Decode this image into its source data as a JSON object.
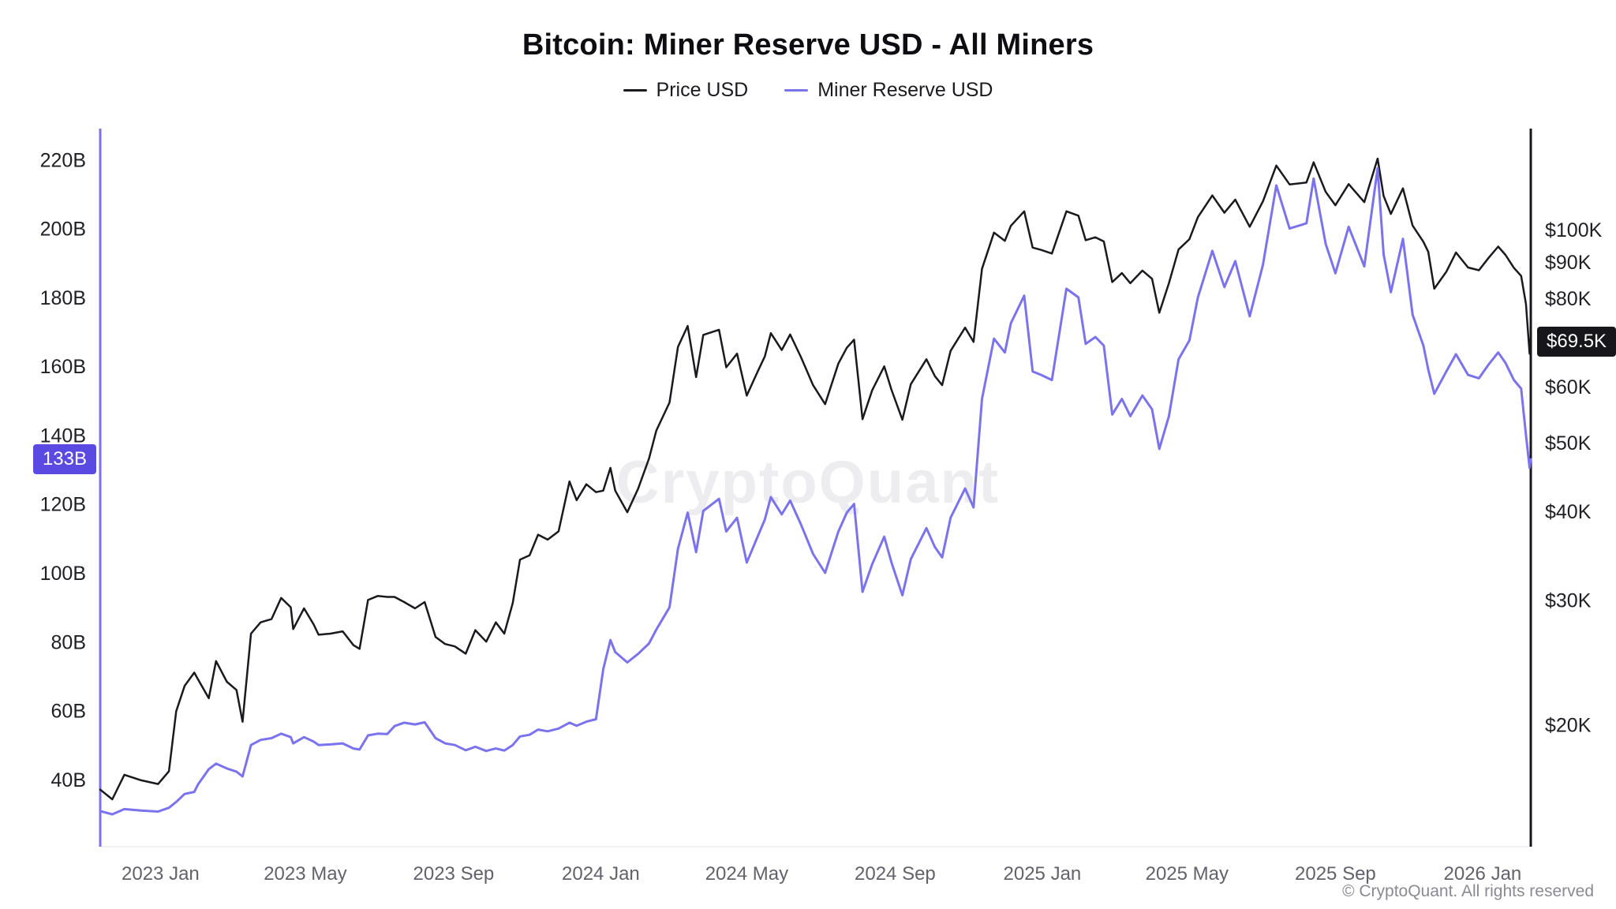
{
  "watermark": {
    "text": "CryptoQuant"
  },
  "footer": {
    "copyright": "© CryptoQuant. All rights reserved"
  },
  "chart_data": {
    "type": "line",
    "title": "Bitcoin: Miner Reserve USD - All Miners",
    "grid": "none",
    "legend_position": "top",
    "x_axis": {
      "range": [
        "2022-11-12",
        "2026-02-10"
      ],
      "ticks": [
        {
          "date": "2023-01-01",
          "label": "2023 Jan"
        },
        {
          "date": "2023-05-01",
          "label": "2023 May"
        },
        {
          "date": "2023-09-01",
          "label": "2023 Sep"
        },
        {
          "date": "2024-01-01",
          "label": "2024 Jan"
        },
        {
          "date": "2024-05-01",
          "label": "2024 May"
        },
        {
          "date": "2024-09-01",
          "label": "2024 Sep"
        },
        {
          "date": "2025-01-01",
          "label": "2025 Jan"
        },
        {
          "date": "2025-05-01",
          "label": "2025 May"
        },
        {
          "date": "2025-09-01",
          "label": "2025 Sep"
        },
        {
          "date": "2026-01-01",
          "label": "2026 Jan"
        }
      ]
    },
    "left_axis": {
      "label": "Miner Reserve USD (billions USD)",
      "scale": "linear",
      "range": [
        20.5,
        229
      ],
      "spine_color": "#7B72EE",
      "ticks": [
        {
          "value": 40,
          "label": "40B"
        },
        {
          "value": 60,
          "label": "60B"
        },
        {
          "value": 80,
          "label": "80B"
        },
        {
          "value": 100,
          "label": "100B"
        },
        {
          "value": 120,
          "label": "120B"
        },
        {
          "value": 140,
          "label": "140B"
        },
        {
          "value": 160,
          "label": "160B"
        },
        {
          "value": 180,
          "label": "180B"
        },
        {
          "value": 200,
          "label": "200B"
        },
        {
          "value": 220,
          "label": "220B"
        }
      ]
    },
    "right_axis": {
      "label": "Price USD (thousands USD)",
      "scale": "log",
      "range": [
        13.46,
        138.8
      ],
      "spine_color": "#17171B",
      "ticks": [
        {
          "value": 20,
          "label": "$20K"
        },
        {
          "value": 30,
          "label": "$30K"
        },
        {
          "value": 40,
          "label": "$40K"
        },
        {
          "value": 50,
          "label": "$50K"
        },
        {
          "value": 60,
          "label": "$60K"
        },
        {
          "value": 80,
          "label": "$80K"
        },
        {
          "value": 90,
          "label": "$90K"
        },
        {
          "value": 100,
          "label": "$100K"
        }
      ]
    },
    "last_value_badges": {
      "left": {
        "label": "133B",
        "value": 133,
        "bg": "#5B4AE1"
      },
      "right": {
        "label": "$69.5K",
        "value": 69.5,
        "bg": "#17171B"
      }
    },
    "series": [
      {
        "name": "Price USD",
        "axis": "right",
        "color": "#1A1A1E",
        "width": 2.5,
        "unit": "USD thousands",
        "point_index": 1
      },
      {
        "name": "Miner Reserve USD",
        "axis": "left",
        "color": "#7B72EE",
        "width": 3,
        "unit": "USD billions",
        "point_index": 2
      }
    ],
    "columns": [
      "date",
      "price_usd_k",
      "miner_reserve_usd_b"
    ],
    "points": [
      [
        "2022-11-12",
        16.2,
        30.8
      ],
      [
        "2022-11-22",
        15.7,
        29.9
      ],
      [
        "2022-12-02",
        17.0,
        31.4
      ],
      [
        "2022-12-16",
        16.7,
        31.0
      ],
      [
        "2022-12-30",
        16.5,
        30.7
      ],
      [
        "2023-01-08",
        17.2,
        31.8
      ],
      [
        "2023-01-14",
        20.9,
        33.5
      ],
      [
        "2023-01-21",
        22.7,
        35.8
      ],
      [
        "2023-01-29",
        23.7,
        36.4
      ],
      [
        "2023-02-01",
        23.2,
        38.5
      ],
      [
        "2023-02-10",
        21.8,
        43.0
      ],
      [
        "2023-02-16",
        24.6,
        44.6
      ],
      [
        "2023-02-25",
        23.0,
        43.2
      ],
      [
        "2023-03-05",
        22.4,
        42.3
      ],
      [
        "2023-03-10",
        20.2,
        40.9
      ],
      [
        "2023-03-17",
        26.9,
        50.0
      ],
      [
        "2023-03-25",
        27.9,
        51.5
      ],
      [
        "2023-04-03",
        28.2,
        52.0
      ],
      [
        "2023-04-11",
        30.2,
        53.3
      ],
      [
        "2023-04-19",
        29.3,
        52.3
      ],
      [
        "2023-04-21",
        27.3,
        50.5
      ],
      [
        "2023-04-30",
        29.2,
        52.3
      ],
      [
        "2023-05-08",
        27.7,
        51.0
      ],
      [
        "2023-05-12",
        26.8,
        50.0
      ],
      [
        "2023-05-22",
        26.9,
        50.2
      ],
      [
        "2023-06-01",
        27.1,
        50.5
      ],
      [
        "2023-06-10",
        25.9,
        49.0
      ],
      [
        "2023-06-15",
        25.6,
        48.7
      ],
      [
        "2023-06-22",
        30.0,
        52.8
      ],
      [
        "2023-06-30",
        30.4,
        53.3
      ],
      [
        "2023-07-08",
        30.3,
        53.2
      ],
      [
        "2023-07-14",
        30.3,
        55.5
      ],
      [
        "2023-07-22",
        29.8,
        56.5
      ],
      [
        "2023-07-31",
        29.2,
        56.0
      ],
      [
        "2023-08-08",
        29.8,
        56.6
      ],
      [
        "2023-08-17",
        26.6,
        52.0
      ],
      [
        "2023-08-25",
        26.0,
        50.5
      ],
      [
        "2023-09-02",
        25.8,
        50.0
      ],
      [
        "2023-09-11",
        25.2,
        48.5
      ],
      [
        "2023-09-19",
        27.2,
        49.5
      ],
      [
        "2023-09-28",
        26.2,
        48.3
      ],
      [
        "2023-10-06",
        27.9,
        49.0
      ],
      [
        "2023-10-13",
        26.9,
        48.4
      ],
      [
        "2023-10-20",
        29.7,
        50.0
      ],
      [
        "2023-10-26",
        34.2,
        52.5
      ],
      [
        "2023-11-03",
        34.7,
        53.0
      ],
      [
        "2023-11-10",
        37.1,
        54.5
      ],
      [
        "2023-11-18",
        36.5,
        54.0
      ],
      [
        "2023-11-27",
        37.5,
        54.8
      ],
      [
        "2023-12-06",
        44.1,
        56.5
      ],
      [
        "2023-12-12",
        41.5,
        55.6
      ],
      [
        "2023-12-20",
        43.7,
        56.8
      ],
      [
        "2023-12-28",
        42.6,
        57.5
      ],
      [
        "2024-01-03",
        42.8,
        72.0
      ],
      [
        "2024-01-09",
        46.1,
        80.5
      ],
      [
        "2024-01-13",
        42.8,
        77.0
      ],
      [
        "2024-01-23",
        39.9,
        74.0
      ],
      [
        "2024-02-01",
        43.1,
        76.5
      ],
      [
        "2024-02-10",
        47.5,
        79.5
      ],
      [
        "2024-02-16",
        52.0,
        83.5
      ],
      [
        "2024-02-27",
        57.0,
        90.0
      ],
      [
        "2024-03-05",
        68.3,
        107.0
      ],
      [
        "2024-03-13",
        73.1,
        117.5
      ],
      [
        "2024-03-20",
        61.9,
        106.0
      ],
      [
        "2024-03-26",
        71.0,
        118.0
      ],
      [
        "2024-04-08",
        72.2,
        121.5
      ],
      [
        "2024-04-14",
        63.9,
        112.0
      ],
      [
        "2024-04-23",
        66.8,
        116.0
      ],
      [
        "2024-05-01",
        58.3,
        103.0
      ],
      [
        "2024-05-10",
        63.0,
        110.5
      ],
      [
        "2024-05-16",
        66.2,
        115.5
      ],
      [
        "2024-05-21",
        71.4,
        122.0
      ],
      [
        "2024-05-30",
        67.6,
        117.0
      ],
      [
        "2024-06-06",
        71.1,
        121.0
      ],
      [
        "2024-06-15",
        66.0,
        114.0
      ],
      [
        "2024-06-25",
        60.3,
        105.5
      ],
      [
        "2024-07-05",
        56.7,
        100.0
      ],
      [
        "2024-07-16",
        64.7,
        112.0
      ],
      [
        "2024-07-23",
        68.1,
        117.5
      ],
      [
        "2024-07-29",
        69.9,
        120.0
      ],
      [
        "2024-08-05",
        54.0,
        94.5
      ],
      [
        "2024-08-13",
        59.3,
        102.5
      ],
      [
        "2024-08-23",
        64.1,
        110.5
      ],
      [
        "2024-08-29",
        59.4,
        103.0
      ],
      [
        "2024-09-07",
        53.9,
        93.5
      ],
      [
        "2024-09-14",
        60.5,
        104.0
      ],
      [
        "2024-09-27",
        65.6,
        113.0
      ],
      [
        "2024-10-04",
        62.1,
        107.5
      ],
      [
        "2024-10-10",
        60.3,
        104.5
      ],
      [
        "2024-10-17",
        67.4,
        116.0
      ],
      [
        "2024-10-29",
        72.7,
        124.5
      ],
      [
        "2024-11-05",
        69.4,
        119.0
      ],
      [
        "2024-11-12",
        88.0,
        150.5
      ],
      [
        "2024-11-22",
        99.0,
        168.0
      ],
      [
        "2024-12-01",
        96.4,
        164.0
      ],
      [
        "2024-12-06",
        101.2,
        172.5
      ],
      [
        "2024-12-17",
        106.1,
        180.5
      ],
      [
        "2024-12-24",
        94.3,
        158.5
      ],
      [
        "2024-12-31",
        93.6,
        157.5
      ],
      [
        "2025-01-09",
        92.5,
        156.0
      ],
      [
        "2025-01-21",
        106.1,
        182.5
      ],
      [
        "2025-01-31",
        104.6,
        180.0
      ],
      [
        "2025-02-06",
        96.6,
        166.5
      ],
      [
        "2025-02-14",
        97.5,
        168.5
      ],
      [
        "2025-02-21",
        96.2,
        166.0
      ],
      [
        "2025-02-28",
        84.3,
        146.0
      ],
      [
        "2025-03-08",
        86.8,
        150.5
      ],
      [
        "2025-03-15",
        84.0,
        145.5
      ],
      [
        "2025-03-25",
        87.5,
        151.5
      ],
      [
        "2025-04-02",
        85.2,
        147.5
      ],
      [
        "2025-04-08",
        76.3,
        136.0
      ],
      [
        "2025-04-16",
        84.0,
        145.5
      ],
      [
        "2025-04-24",
        93.7,
        162.0
      ],
      [
        "2025-05-03",
        96.9,
        167.5
      ],
      [
        "2025-05-10",
        104.1,
        180.0
      ],
      [
        "2025-05-22",
        111.7,
        193.5
      ],
      [
        "2025-06-01",
        105.6,
        183.0
      ],
      [
        "2025-06-10",
        110.2,
        190.5
      ],
      [
        "2025-06-22",
        100.9,
        174.5
      ],
      [
        "2025-07-03",
        109.6,
        189.5
      ],
      [
        "2025-07-14",
        123.1,
        212.5
      ],
      [
        "2025-07-25",
        115.8,
        200.0
      ],
      [
        "2025-08-08",
        116.5,
        201.5
      ],
      [
        "2025-08-14",
        124.4,
        214.5
      ],
      [
        "2025-08-24",
        113.0,
        195.5
      ],
      [
        "2025-09-01",
        108.2,
        187.0
      ],
      [
        "2025-09-12",
        115.9,
        200.5
      ],
      [
        "2025-09-25",
        109.3,
        189.0
      ],
      [
        "2025-10-06",
        125.9,
        217.5
      ],
      [
        "2025-10-11",
        111.5,
        192.5
      ],
      [
        "2025-10-17",
        105.2,
        181.5
      ],
      [
        "2025-10-27",
        114.3,
        197.0
      ],
      [
        "2025-11-04",
        101.3,
        175.0
      ],
      [
        "2025-11-13",
        96.1,
        166.0
      ],
      [
        "2025-11-17",
        93.0,
        159.0
      ],
      [
        "2025-11-22",
        82.5,
        152.0
      ],
      [
        "2025-12-02",
        87.2,
        158.5
      ],
      [
        "2025-12-10",
        92.8,
        163.5
      ],
      [
        "2025-12-20",
        88.4,
        157.5
      ],
      [
        "2025-12-29",
        87.6,
        156.5
      ],
      [
        "2026-01-06",
        91.2,
        160.5
      ],
      [
        "2026-01-14",
        94.6,
        164.0
      ],
      [
        "2026-01-20",
        92.1,
        161.0
      ],
      [
        "2026-01-27",
        88.3,
        156.0
      ],
      [
        "2026-02-02",
        86.0,
        153.5
      ],
      [
        "2026-02-06",
        78.5,
        140.0
      ],
      [
        "2026-02-09",
        66.8,
        130.5
      ],
      [
        "2026-02-10",
        69.5,
        133.0
      ]
    ]
  }
}
